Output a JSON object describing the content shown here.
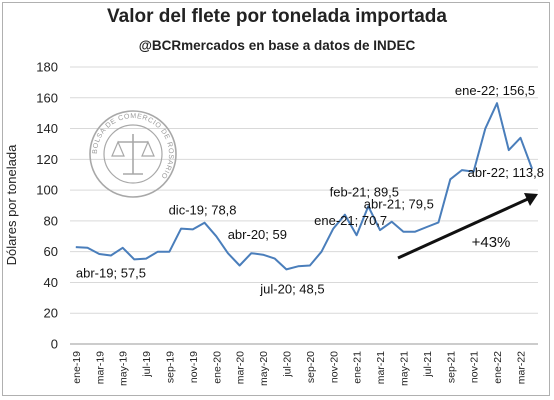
{
  "chart_data": {
    "type": "line",
    "title": "Valor del flete por tonelada importada",
    "subtitle": "@BCRmercados en base a datos de INDEC",
    "ylabel": "Dólares por tonelada",
    "xlabel": "",
    "ylim": [
      0,
      180
    ],
    "yticks": [
      0,
      20,
      40,
      60,
      80,
      100,
      120,
      140,
      160,
      180
    ],
    "grid": true,
    "x": [
      "ene-19",
      "feb-19",
      "mar-19",
      "abr-19",
      "may-19",
      "jun-19",
      "jul-19",
      "ago-19",
      "sep-19",
      "oct-19",
      "nov-19",
      "dic-19",
      "ene-20",
      "feb-20",
      "mar-20",
      "abr-20",
      "may-20",
      "jun-20",
      "jul-20",
      "ago-20",
      "sep-20",
      "oct-20",
      "nov-20",
      "dic-20",
      "ene-21",
      "feb-21",
      "mar-21",
      "abr-21",
      "may-21",
      "jun-21",
      "jul-21",
      "ago-21",
      "sep-21",
      "oct-21",
      "nov-21",
      "dic-21",
      "ene-22",
      "feb-22",
      "mar-22",
      "abr-22"
    ],
    "xtick_labels": [
      "ene-19",
      "mar-19",
      "may-19",
      "jul-19",
      "sep-19",
      "nov-19",
      "ene-20",
      "mar-20",
      "may-20",
      "jul-20",
      "sep-20",
      "nov-20",
      "ene-21",
      "mar-21",
      "may-21",
      "jul-21",
      "sep-21",
      "nov-21",
      "ene-22",
      "mar-22"
    ],
    "series": [
      {
        "color": "#4a7ebb",
        "values": [
          63,
          62.5,
          58.5,
          57.5,
          62.5,
          55,
          55.5,
          60,
          60,
          75,
          74.5,
          78.8,
          70,
          59,
          51,
          59,
          58,
          55.5,
          48.5,
          50.5,
          51,
          60,
          75,
          84,
          70.7,
          89.5,
          74,
          79.5,
          73,
          73,
          76,
          79,
          107,
          113,
          112,
          140,
          156.5,
          126,
          134,
          113.8
        ]
      }
    ],
    "annotations": [
      {
        "text": "abr-19; 57,5",
        "x": "abr-19",
        "y": 57.5
      },
      {
        "text": "dic-19; 78,8",
        "x": "dic-19",
        "y": 78.8
      },
      {
        "text": "abr-20; 59",
        "x": "abr-20",
        "y": 59
      },
      {
        "text": "jul-20; 48,5",
        "x": "jul-20",
        "y": 48.5
      },
      {
        "text": "ene-21; 70,7",
        "x": "ene-21",
        "y": 70.7
      },
      {
        "text": "feb-21; 89,5",
        "x": "feb-21",
        "y": 89.5
      },
      {
        "text": "abr-21; 79,5",
        "x": "abr-21",
        "y": 79.5
      },
      {
        "text": "ene-22; 156,5",
        "x": "ene-22",
        "y": 156.5
      },
      {
        "text": "abr-22; 113,8",
        "x": "abr-22",
        "y": 113.8
      },
      {
        "text": "+43%"
      }
    ],
    "watermark_text": "BOLSA DE COMERCIO DE ROSARIO"
  }
}
